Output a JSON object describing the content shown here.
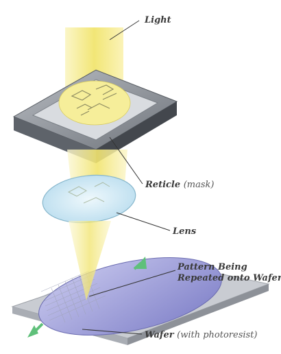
{
  "labels": {
    "light": "Light",
    "reticle": "Reticle",
    "reticle_note": "(mask)",
    "lens": "Lens",
    "pattern_line1": "Pattern Being",
    "pattern_line2": "Repeated onto Wafer",
    "wafer": "Wafer",
    "wafer_note": "(with photoresist)"
  },
  "colors": {
    "light_beam": "#f4ea86",
    "reticle_frame": "#8a8f96",
    "lens": "#cfe6f2",
    "wafer_disc": "#9a9ad8",
    "stage": "#c9ccd2",
    "arrow": "#5fc07a",
    "leader_line": "#333333"
  }
}
